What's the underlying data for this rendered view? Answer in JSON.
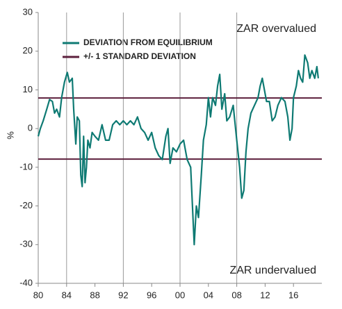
{
  "chart_data": {
    "type": "line",
    "ylabel": "%",
    "annotations": [
      "ZAR overvalued",
      "ZAR undervalued"
    ],
    "xlim": [
      1980,
      2020
    ],
    "xticks": [
      {
        "value": 1980,
        "label": "80"
      },
      {
        "value": 1984,
        "label": "84"
      },
      {
        "value": 1988,
        "label": "88"
      },
      {
        "value": 1992,
        "label": "92"
      },
      {
        "value": 1996,
        "label": "96"
      },
      {
        "value": 2000,
        "label": "00"
      },
      {
        "value": 2004,
        "label": "04"
      },
      {
        "value": 2008,
        "label": "08"
      },
      {
        "value": 2012,
        "label": "12"
      },
      {
        "value": 2016,
        "label": "16"
      }
    ],
    "xgridlines": [
      1984,
      1992,
      2000,
      2008
    ],
    "ylim": [
      -40,
      30
    ],
    "yticks": [
      -40,
      -30,
      -20,
      -10,
      0,
      10,
      20,
      30
    ],
    "series": [
      {
        "name": "DEVIATION FROM EQUILIBRIUM",
        "color": "#0e7a73",
        "x": [
          1980,
          1980.3,
          1980.7,
          1981.2,
          1981.6,
          1982,
          1982.3,
          1982.6,
          1983,
          1983.3,
          1983.7,
          1984.1,
          1984.4,
          1984.8,
          1985,
          1985.3,
          1985.5,
          1985.8,
          1986,
          1986.2,
          1986.4,
          1986.6,
          1986.8,
          1987,
          1987.3,
          1987.6,
          1988,
          1988.5,
          1989,
          1989.5,
          1990,
          1990.5,
          1991,
          1991.5,
          1992,
          1992.5,
          1993,
          1993.5,
          1994,
          1994.5,
          1995,
          1995.5,
          1996,
          1996.5,
          1997,
          1997.5,
          1998,
          1998.3,
          1998.6,
          1999,
          1999.5,
          2000,
          2000.5,
          2001,
          2001.5,
          2002,
          2002.3,
          2002.6,
          2003,
          2003.3,
          2003.7,
          2004,
          2004.3,
          2004.6,
          2005,
          2005.3,
          2005.6,
          2005.9,
          2006.3,
          2006.6,
          2007,
          2007.5,
          2008,
          2008.4,
          2008.7,
          2009,
          2009.3,
          2009.6,
          2010,
          2010.5,
          2011,
          2011.3,
          2011.6,
          2011.9,
          2012.2,
          2012.6,
          2013,
          2013.4,
          2013.8,
          2014.3,
          2014.8,
          2015.2,
          2015.5,
          2015.8,
          2016,
          2016.4,
          2016.7,
          2017,
          2017.3,
          2017.6,
          2018,
          2018.3,
          2018.6,
          2019,
          2019.3,
          2019.5
        ],
        "values": [
          -2,
          0,
          2,
          5,
          7.5,
          7,
          4,
          5,
          3,
          8,
          12,
          14.5,
          12,
          13,
          5,
          -4,
          3,
          2,
          -12,
          -15,
          -2,
          -14,
          -10,
          -3,
          -5,
          -1,
          -2,
          -3,
          1,
          -3,
          -3,
          1,
          2,
          1,
          2,
          1,
          2,
          1,
          3,
          0,
          -1,
          -3,
          -1,
          -5,
          -7,
          -8,
          -2,
          0,
          -9,
          -5,
          -6,
          -4,
          -3,
          -8,
          -10,
          -30,
          -20,
          -23,
          -12,
          -3,
          1,
          8,
          3,
          8,
          6,
          11,
          14,
          5,
          9,
          2,
          3,
          6,
          -3,
          -10,
          -18,
          -16,
          -6,
          0,
          4,
          6,
          8,
          11,
          13,
          10,
          7,
          7,
          2,
          3,
          6,
          8,
          7,
          3,
          -3,
          0,
          8,
          11,
          15,
          13,
          12,
          19,
          17,
          13,
          15,
          13,
          16,
          13
        ]
      }
    ],
    "reference_lines": {
      "name": "+/- 1 STANDARD DEVIATION",
      "color": "#5c1f3c",
      "values": [
        7.9,
        -7.9
      ]
    }
  }
}
